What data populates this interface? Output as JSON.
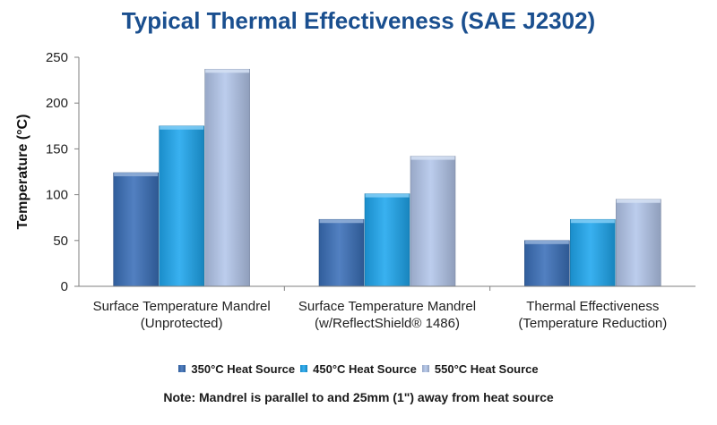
{
  "chart_data": {
    "type": "bar",
    "title": "Typical Thermal Effectiveness (SAE J2302)",
    "ylabel": "Temperature (°C)",
    "xlabel": "",
    "ylim": [
      0,
      250
    ],
    "yticks": [
      0,
      50,
      100,
      150,
      200,
      250
    ],
    "grid": false,
    "legend_position": "bottom",
    "categories": [
      [
        "Surface Temperature Mandrel",
        "(Unprotected)"
      ],
      [
        "Surface Temperature Mandrel",
        "(w/ReflectShield® 1486)"
      ],
      [
        "Thermal Effectiveness",
        "(Temperature Reduction)"
      ]
    ],
    "series": [
      {
        "name": "350°C Heat Source",
        "values": [
          124,
          73,
          50
        ],
        "color": "#3a6fb8"
      },
      {
        "name": "450°C Heat Source",
        "values": [
          175,
          101,
          73
        ],
        "color": "#1ea6ee"
      },
      {
        "name": "550°C Heat Source",
        "values": [
          237,
          142,
          95
        ],
        "color": "#b3c6ea"
      }
    ],
    "note": "Note: Mandrel is parallel to and 25mm (1\") away from heat source"
  }
}
